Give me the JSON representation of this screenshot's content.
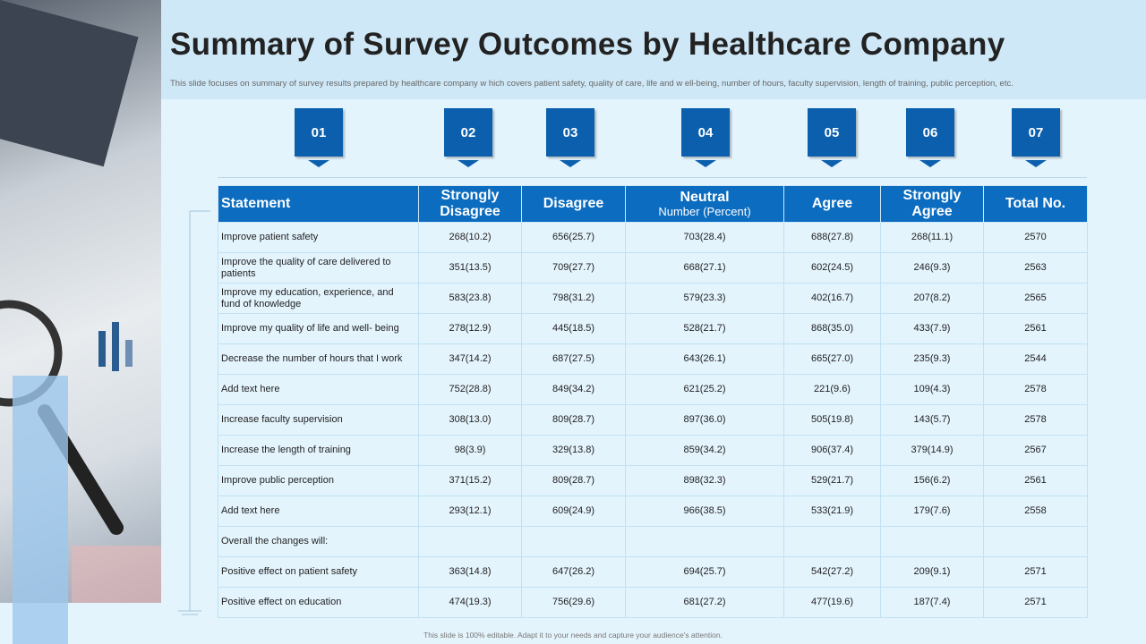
{
  "header": {
    "title": "Summary of Survey Outcomes by Healthcare Company",
    "subtitle": "This slide focuses on summary of survey results prepared by healthcare company w hich covers patient safety, quality of care, life and w ell-being, number of hours, faculty supervision, length of training, public perception, etc."
  },
  "badges": [
    "01",
    "02",
    "03",
    "04",
    "05",
    "06",
    "07"
  ],
  "table": {
    "columns": [
      "Statement",
      "Strongly Disagree",
      "Disagree",
      "Neutral",
      "Agree",
      "Strongly Agree",
      "Total No."
    ],
    "neutral_note": "Number (Percent)",
    "rows": [
      [
        "Improve patient safety",
        "268(10.2)",
        "656(25.7)",
        "703(28.4)",
        "688(27.8)",
        "268(11.1)",
        "2570"
      ],
      [
        "Improve the quality of care delivered to patients",
        "351(13.5)",
        "709(27.7)",
        "668(27.1)",
        "602(24.5)",
        "246(9.3)",
        "2563"
      ],
      [
        "Improve my education, experience, and fund of knowledge",
        "583(23.8)",
        "798(31.2)",
        "579(23.3)",
        "402(16.7)",
        "207(8.2)",
        "2565"
      ],
      [
        "Improve my quality of life and well- being",
        "278(12.9)",
        "445(18.5)",
        "528(21.7)",
        "868(35.0)",
        "433(7.9)",
        "2561"
      ],
      [
        "Decrease the number of hours that I work",
        "347(14.2)",
        "687(27.5)",
        "643(26.1)",
        "665(27.0)",
        "235(9.3)",
        "2544"
      ],
      [
        "Add text here",
        "752(28.8)",
        "849(34.2)",
        "621(25.2)",
        "221(9.6)",
        "109(4.3)",
        "2578"
      ],
      [
        "Increase faculty supervision",
        "308(13.0)",
        "809(28.7)",
        "897(36.0)",
        "505(19.8)",
        "143(5.7)",
        "2578"
      ],
      [
        "Increase the length of training",
        "98(3.9)",
        "329(13.8)",
        "859(34.2)",
        "906(37.4)",
        "379(14.9)",
        "2567"
      ],
      [
        "Improve public perception",
        "371(15.2)",
        "809(28.7)",
        "898(32.3)",
        "529(21.7)",
        "156(6.2)",
        "2561"
      ],
      [
        "Add text here",
        "293(12.1)",
        "609(24.9)",
        "966(38.5)",
        "533(21.9)",
        "179(7.6)",
        "2558"
      ],
      [
        "Overall the changes will:"
      ],
      [
        "Positive effect on patient safety",
        "363(14.8)",
        "647(26.2)",
        "694(25.7)",
        "542(27.2)",
        "209(9.1)",
        "2571"
      ],
      [
        "Positive effect on education",
        "474(19.3)",
        "756(29.6)",
        "681(27.2)",
        "477(19.6)",
        "187(7.4)",
        "2571"
      ]
    ]
  },
  "footer": "This slide is 100% editable. Adapt it to your needs and capture your audience's attention."
}
